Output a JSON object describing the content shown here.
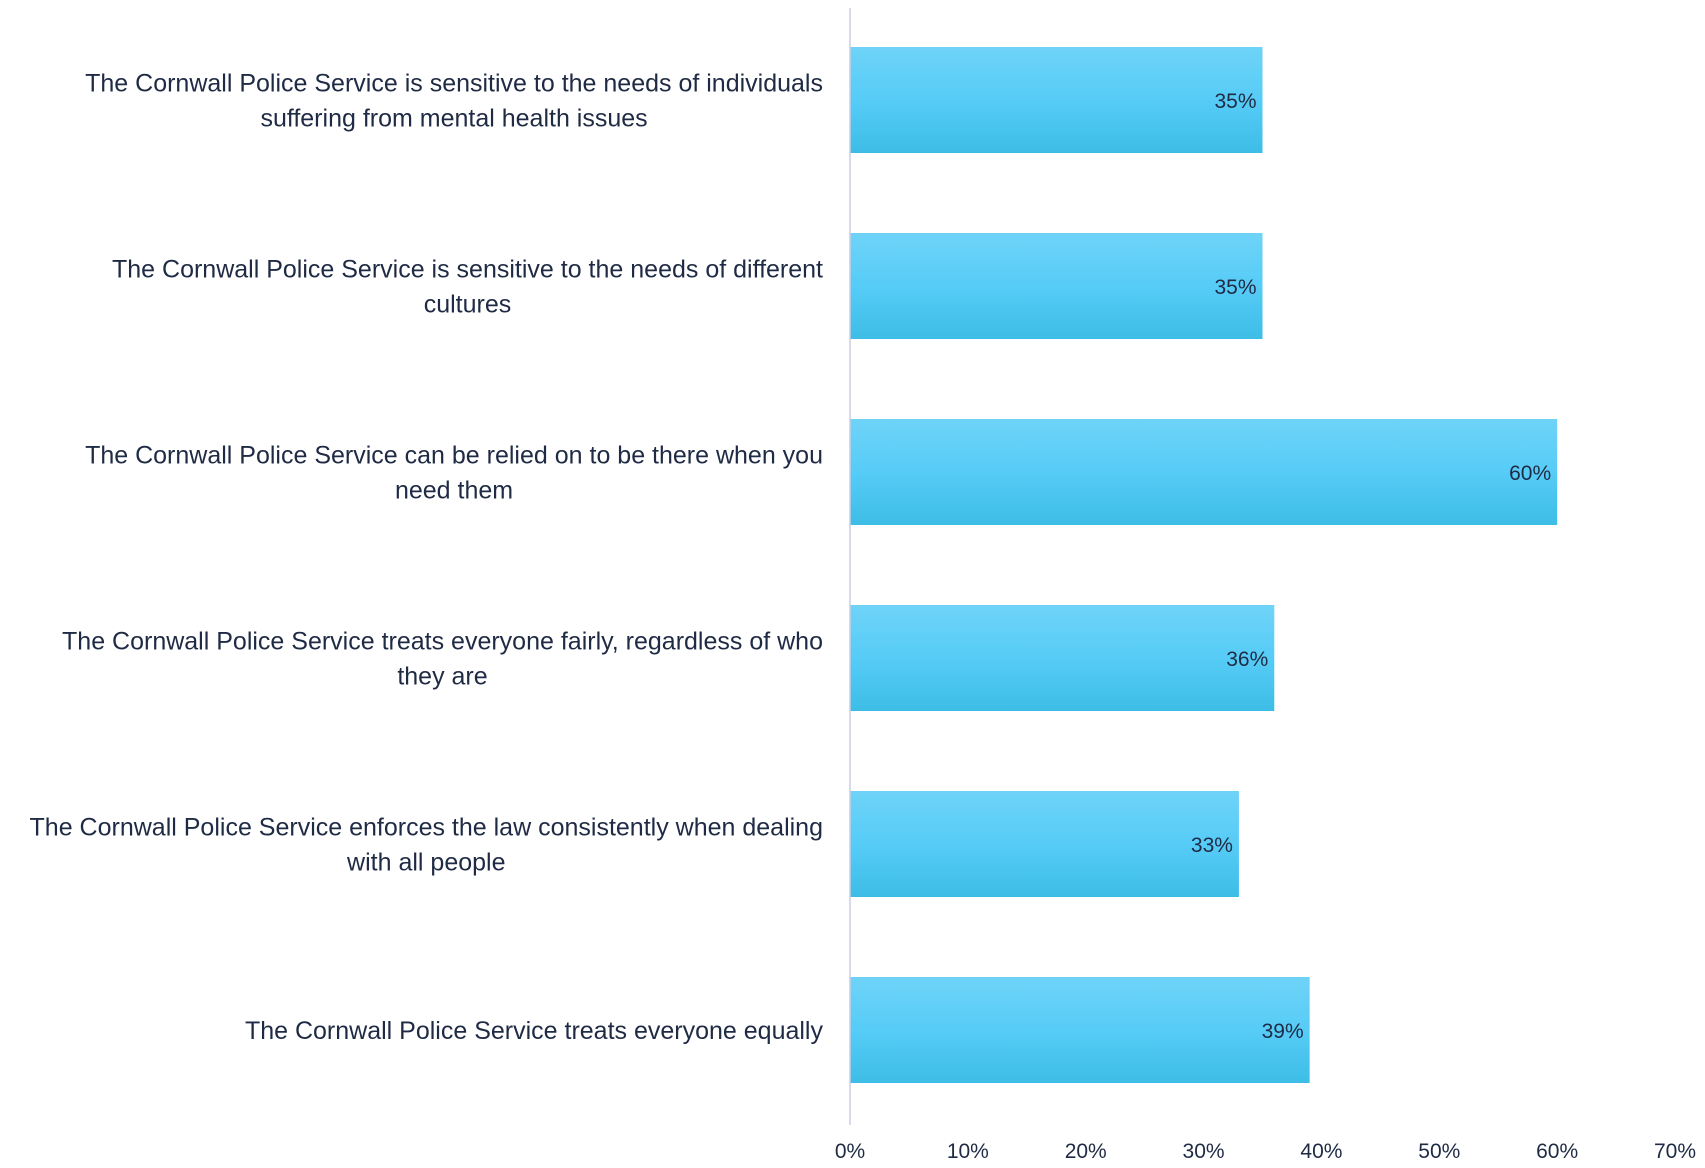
{
  "chart_data": {
    "type": "bar",
    "orientation": "horizontal",
    "title": "",
    "xlabel": "",
    "ylabel": "",
    "categories": [
      [
        "The Cornwall Police Service is sensitive to the needs of individuals",
        "suffering from mental health issues"
      ],
      [
        "The Cornwall Police Service is sensitive to the needs of different",
        "cultures"
      ],
      [
        "The Cornwall Police Service can be relied on to be there when you",
        "need them"
      ],
      [
        "The Cornwall Police Service treats everyone fairly, regardless of who",
        "they are"
      ],
      [
        "The Cornwall Police Service enforces the law consistently when dealing",
        "with all people"
      ],
      [
        "The Cornwall Police Service treats everyone equally"
      ]
    ],
    "values": [
      35,
      35,
      60,
      36,
      33,
      39
    ],
    "data_labels": [
      "35%",
      "35%",
      "60%",
      "36%",
      "33%",
      "39%"
    ],
    "x_ticks": [
      "0%",
      "10%",
      "20%",
      "30%",
      "40%",
      "50%",
      "60%",
      "70%"
    ],
    "xlim": [
      0,
      70
    ],
    "grid": false,
    "legend": "none",
    "colors": {
      "bar_top": "#6fd3f7",
      "bar_mid": "#56ccf7",
      "bar_bottom": "#3dbde6",
      "text": "#1f2a44",
      "axis": "#c8cde6"
    }
  }
}
